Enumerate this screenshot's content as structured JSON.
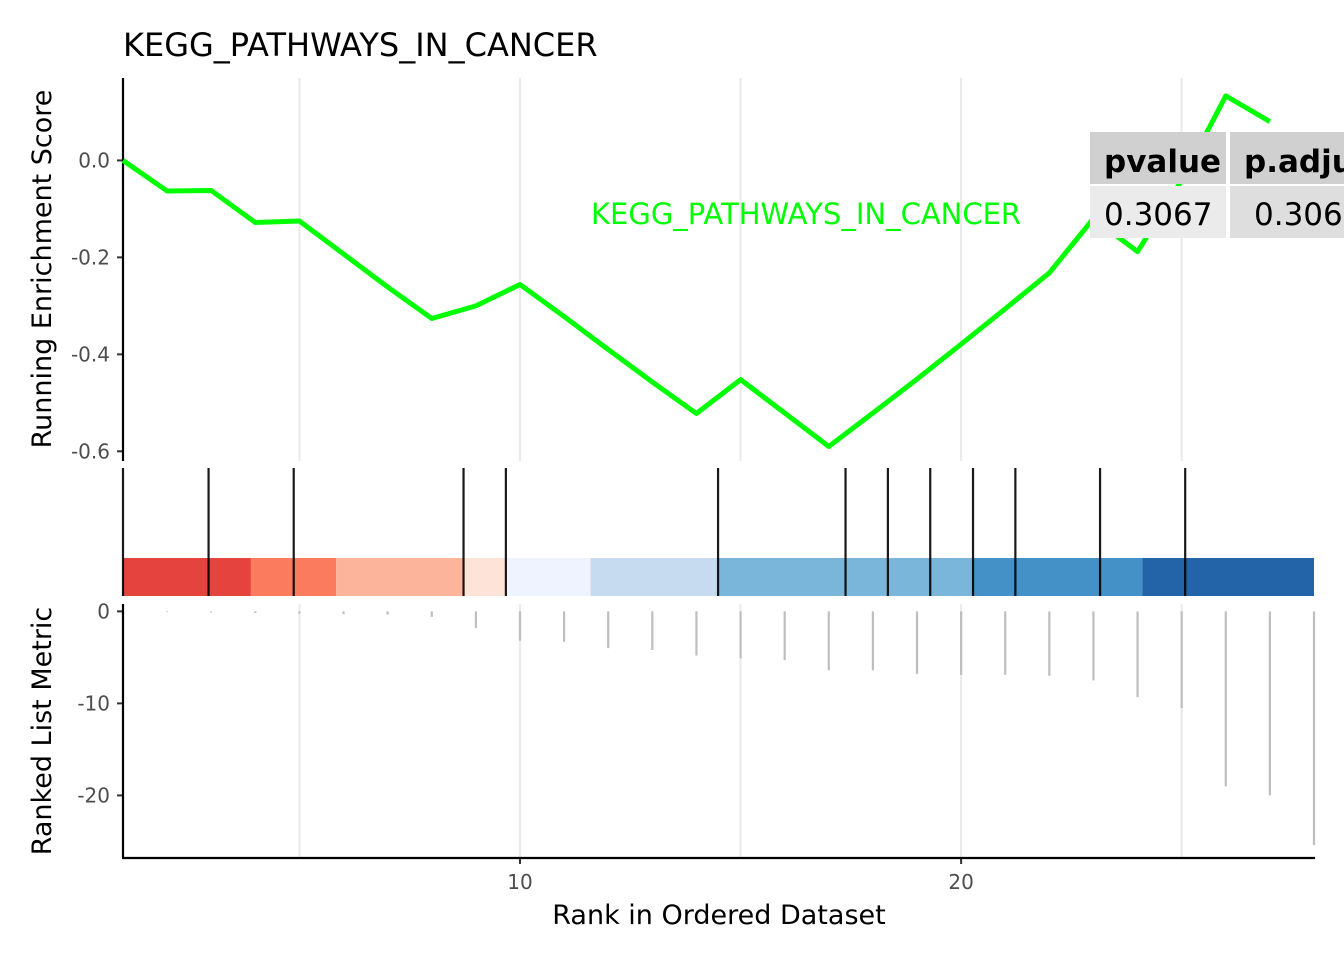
{
  "title": "KEGG_PATHWAYS_IN_CANCER",
  "xlabel": "Rank in Ordered Dataset",
  "top_ylabel": "Running Enrichment Score",
  "bottom_ylabel": "Ranked List Metric",
  "annotation_label": "KEGG_PATHWAYS_IN_CANCER",
  "stats_table": {
    "headers": [
      "pvalue",
      "p.adju"
    ],
    "values": [
      "0.3067",
      "0.306"
    ]
  },
  "colors": {
    "es_line": "#00ff00",
    "annotation": "#00ff00",
    "gridline": "#ebebeb",
    "hit_line": "#000000",
    "metric_line": "#bebebe",
    "table_header_bg": "#d0d0d0",
    "table_cell_bg": "#ebebeb",
    "heatmap": [
      "#e5433d",
      "#fb7b5e",
      "#fcb49a",
      "#fee4d8",
      "#eff3ff",
      "#c6dbef",
      "#7ab6d9",
      "#4391c6",
      "#2364a8"
    ]
  },
  "chart_data": [
    {
      "type": "line",
      "name": "running-enrichment-score",
      "xlim": [
        1,
        28
      ],
      "ylim": [
        -0.62,
        0.17
      ],
      "x_ticks": [],
      "y_ticks": [
        0.0,
        -0.2,
        -0.4,
        -0.6
      ],
      "y_tick_labels": [
        "0.0",
        "-0.2",
        "-0.4",
        "-0.6"
      ],
      "grid": true,
      "x": [
        1,
        2,
        3,
        4,
        5,
        6,
        7,
        8,
        9,
        10,
        11,
        12,
        13,
        14,
        15,
        16,
        17,
        18,
        19,
        20,
        21,
        22,
        23,
        24,
        25,
        26,
        27
      ],
      "values": [
        0.0,
        -0.063,
        -0.062,
        -0.128,
        -0.125,
        -0.193,
        -0.261,
        -0.326,
        -0.3,
        -0.256,
        -0.322,
        -0.39,
        -0.457,
        -0.522,
        -0.452,
        -0.521,
        -0.59,
        -0.521,
        -0.451,
        -0.379,
        -0.306,
        -0.232,
        -0.12,
        -0.188,
        -0.041,
        0.133,
        0.08
      ]
    },
    {
      "type": "bar",
      "name": "gene-hits-and-ranking-heatmap",
      "xlim": [
        1,
        28
      ],
      "hit_positions": [
        1,
        2.94,
        4.87,
        8.72,
        9.68,
        14.49,
        17.38,
        18.34,
        19.3,
        20.27,
        21.23,
        23.15,
        25.08
      ],
      "heatmap_boundaries": [
        1,
        3.9,
        5.83,
        8.72,
        9.68,
        11.6,
        14.49,
        20.27,
        24.11,
        28
      ]
    },
    {
      "type": "bar",
      "name": "ranked-list-metric",
      "xlim": [
        1,
        28
      ],
      "ylim": [
        -26.8,
        0.8
      ],
      "x_ticks": [
        10,
        20
      ],
      "x_tick_labels": [
        "10",
        "20"
      ],
      "y_ticks": [
        0,
        -10,
        -20
      ],
      "y_tick_labels": [
        "0",
        "-10",
        "-20"
      ],
      "grid": true,
      "x": [
        2,
        3,
        4,
        5,
        6,
        7,
        8,
        9,
        10,
        11,
        12,
        13,
        14,
        15,
        16,
        17,
        18,
        19,
        20,
        21,
        22,
        23,
        24,
        25,
        26,
        27,
        28
      ],
      "values": [
        -0.08,
        -0.12,
        -0.18,
        -0.25,
        -0.3,
        -0.35,
        -0.6,
        -1.8,
        -3.2,
        -3.3,
        -4.0,
        -4.2,
        -4.8,
        -5.1,
        -5.3,
        -6.4,
        -6.4,
        -6.8,
        -6.9,
        -6.9,
        -7.0,
        -7.5,
        -9.3,
        -10.5,
        -19.0,
        -20.0,
        -25.4
      ]
    }
  ]
}
